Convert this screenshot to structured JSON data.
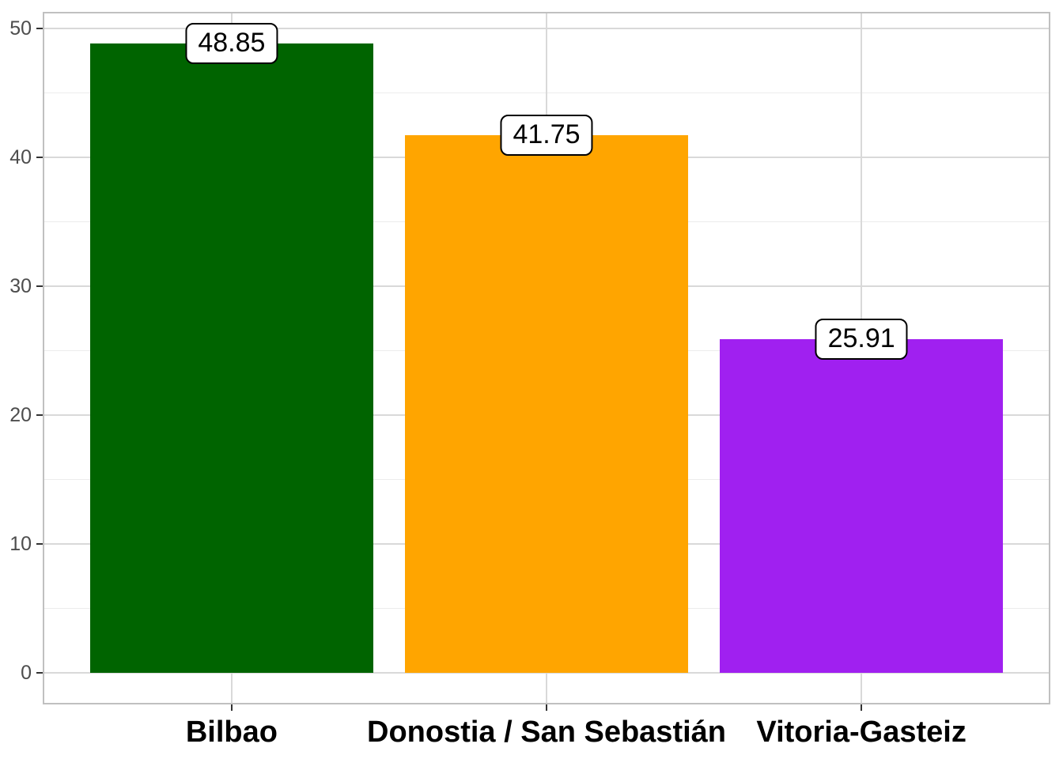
{
  "chart_data": {
    "type": "bar",
    "categories": [
      "Bilbao",
      "Donostia / San Sebastián",
      "Vitoria-Gasteiz"
    ],
    "values": [
      48.85,
      41.75,
      25.91
    ],
    "value_labels": [
      "48.85",
      "41.75",
      "25.91"
    ],
    "bar_colors": [
      "#006400",
      "#FFA500",
      "#A020F0"
    ],
    "xlabel": "",
    "ylabel": "",
    "ylim": [
      -2.44,
      51.29
    ],
    "y_major_ticks": [
      0,
      10,
      20,
      30,
      40,
      50
    ],
    "y_tick_labels": [
      "0",
      "10",
      "20",
      "30",
      "40",
      "50"
    ],
    "y_minor_ticks": [
      5,
      15,
      25,
      35,
      45
    ],
    "bar_width_fraction": 0.9,
    "x_expansion": 0.6,
    "grid": "horizontal major+minor, vertical major at category centers",
    "legend_position": "none"
  },
  "style": {
    "page_background": "#FFFFFF",
    "panel_background": "#FFFFFF",
    "panel_border_color": "#C0C0C0",
    "grid_major_color": "#D9D9D9",
    "grid_minor_color": "#ECECEC",
    "tick_color": "#333333",
    "y_tick_label_color": "#4D4D4D",
    "x_tick_label_color": "#000000",
    "value_label_background": "#FFFFFF",
    "value_label_border": "#000000",
    "value_label_text": "#000000"
  }
}
